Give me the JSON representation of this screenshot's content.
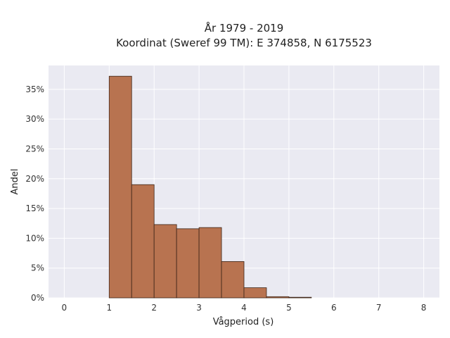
{
  "chart_data": {
    "type": "bar",
    "title_line1": "År 1979 - 2019",
    "title_line2": "Koordinat (Sweref 99 TM): E 374858, N 6175523",
    "xlabel": "Vågperiod (s)",
    "ylabel": "Andel",
    "xlim": [
      -0.35,
      8.35
    ],
    "ylim": [
      0,
      0.39
    ],
    "x_ticks": [
      0,
      1,
      2,
      3,
      4,
      5,
      6,
      7,
      8
    ],
    "x_tick_labels": [
      "0",
      "1",
      "2",
      "3",
      "4",
      "5",
      "6",
      "7",
      "8"
    ],
    "y_ticks": [
      0,
      0.05,
      0.1,
      0.15,
      0.2,
      0.25,
      0.3,
      0.35
    ],
    "y_tick_labels": [
      "0%",
      "5%",
      "10%",
      "15%",
      "20%",
      "25%",
      "30%",
      "35%"
    ],
    "bin_width": 0.5,
    "bins": [
      {
        "x0": 1.0,
        "value": 0.372
      },
      {
        "x0": 1.5,
        "value": 0.19
      },
      {
        "x0": 2.0,
        "value": 0.123
      },
      {
        "x0": 2.5,
        "value": 0.116
      },
      {
        "x0": 3.0,
        "value": 0.118
      },
      {
        "x0": 3.5,
        "value": 0.061
      },
      {
        "x0": 4.0,
        "value": 0.017
      },
      {
        "x0": 4.5,
        "value": 0.002
      },
      {
        "x0": 5.0,
        "value": 0.001
      }
    ],
    "grid": true,
    "colors": {
      "bar_fill": "#b87350",
      "bar_edge": "#3d2518",
      "plot_bg": "#eaeaf2",
      "grid": "#ffffff"
    }
  }
}
